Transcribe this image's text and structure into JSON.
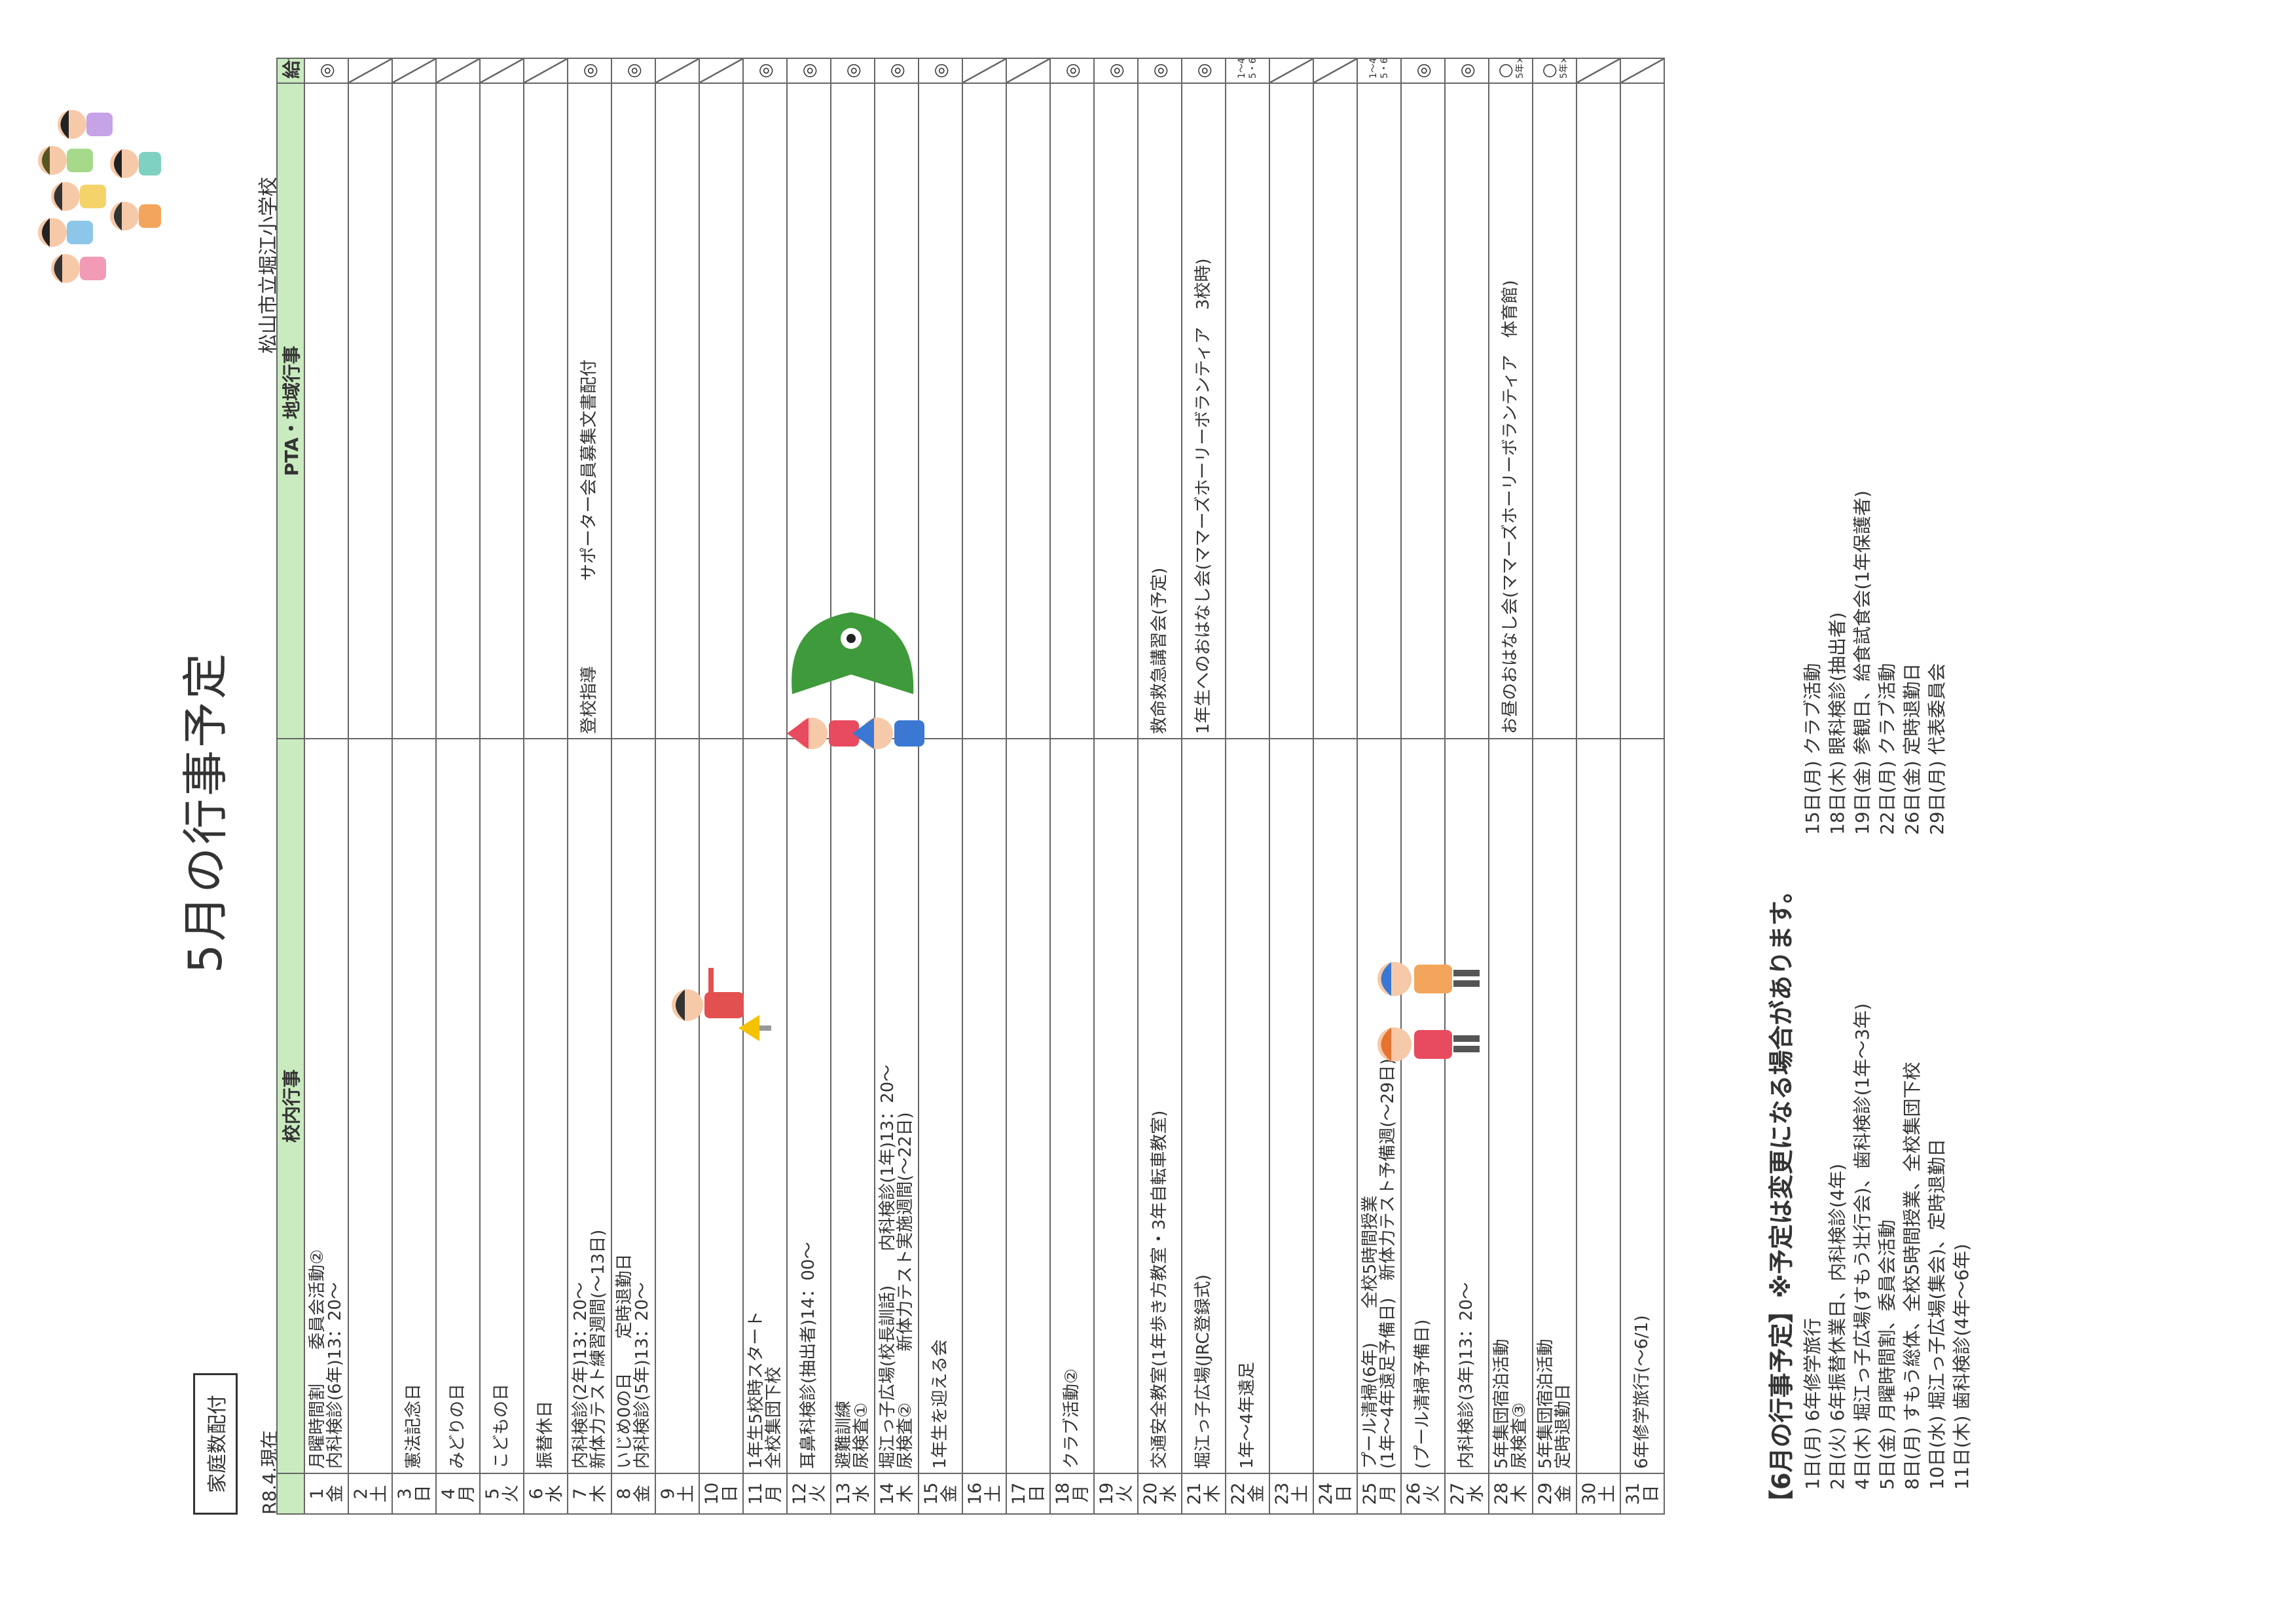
{
  "header": {
    "title": "5月の行事予定",
    "label": "家庭数配付",
    "as_of": "R8.4.現在",
    "school": "松山市立堀江小学校"
  },
  "columns": {
    "school": "校内行事",
    "pta": "PTA・地域行事",
    "lunch": "給食"
  },
  "days": [
    {
      "d": "1",
      "w": "金",
      "ev": "月曜時間割　　委員会活動②\n内科検診(6年)13：20～",
      "pta": "",
      "ml": "◎",
      "s": ""
    },
    {
      "d": "2",
      "w": "土",
      "ev": "",
      "pta": "",
      "ml": "",
      "s": "x"
    },
    {
      "d": "3",
      "w": "日",
      "ev": "憲法記念日",
      "pta": "",
      "ml": "",
      "s": "x"
    },
    {
      "d": "4",
      "w": "月",
      "ev": "みどりの日",
      "pta": "",
      "ml": "",
      "s": "x"
    },
    {
      "d": "5",
      "w": "火",
      "ev": "こどもの日",
      "pta": "",
      "ml": "",
      "s": "x"
    },
    {
      "d": "6",
      "w": "水",
      "ev": "振替休日",
      "pta": "",
      "ml": "",
      "s": "x"
    },
    {
      "d": "7",
      "w": "木",
      "ev": "内科検診(2年)13：20～\n新体力テスト練習週間(～13日)",
      "pta": "登校指導　　　　　サポーター会員募集文書配付",
      "ml": "◎",
      "s": ""
    },
    {
      "d": "8",
      "w": "金",
      "ev": "いじめ0の日　　定時退勤日\n内科検診(5年)13：20～",
      "pta": "",
      "ml": "◎",
      "s": ""
    },
    {
      "d": "9",
      "w": "土",
      "ev": "",
      "pta": "",
      "ml": "",
      "s": "x"
    },
    {
      "d": "10",
      "w": "日",
      "ev": "",
      "pta": "",
      "ml": "",
      "s": "x"
    },
    {
      "d": "11",
      "w": "月",
      "ev": "1年生5校時スタート\n全校集団下校",
      "pta": "",
      "ml": "◎",
      "s": ""
    },
    {
      "d": "12",
      "w": "火",
      "ev": "耳鼻科検診(抽出者)14：00～",
      "pta": "",
      "ml": "◎",
      "s": ""
    },
    {
      "d": "13",
      "w": "水",
      "ev": "避難訓練\n尿検査①",
      "pta": "",
      "ml": "◎",
      "s": ""
    },
    {
      "d": "14",
      "w": "木",
      "ev": "堀江っ子広場(校長訓話)　　内科検診(1年)13：20～\n尿検査②　　　新体力テスト実施週間(～22日)",
      "pta": "",
      "ml": "◎",
      "s": ""
    },
    {
      "d": "15",
      "w": "金",
      "ev": "1年生を迎える会",
      "pta": "",
      "ml": "◎",
      "s": ""
    },
    {
      "d": "16",
      "w": "土",
      "ev": "",
      "pta": "",
      "ml": "",
      "s": "x"
    },
    {
      "d": "17",
      "w": "日",
      "ev": "",
      "pta": "",
      "ml": "",
      "s": "x"
    },
    {
      "d": "18",
      "w": "月",
      "ev": "クラブ活動②",
      "pta": "",
      "ml": "◎",
      "s": ""
    },
    {
      "d": "19",
      "w": "火",
      "ev": "",
      "pta": "",
      "ml": "◎",
      "s": ""
    },
    {
      "d": "20",
      "w": "水",
      "ev": "交通安全教室(1年歩き方教室・3年自転車教室)",
      "pta": "救命救急講習会(予定)",
      "ml": "◎",
      "s": ""
    },
    {
      "d": "21",
      "w": "木",
      "ev": "堀江っ子広場(JRC登録式)",
      "pta": "1年生へのおはなし会(ママーズホーリーボランティア　3校時)",
      "ml": "◎",
      "s": ""
    },
    {
      "d": "22",
      "w": "金",
      "ev": "1年～4年遠足",
      "pta": "",
      "ml": "",
      "s": "1～4年×\n5・6年○"
    },
    {
      "d": "23",
      "w": "土",
      "ev": "",
      "pta": "",
      "ml": "",
      "s": "x"
    },
    {
      "d": "24",
      "w": "日",
      "ev": "",
      "pta": "",
      "ml": "",
      "s": "x"
    },
    {
      "d": "25",
      "w": "月",
      "ev": "プール清掃(6年)　　全校5時間授業\n(1年～4年遠足予備日)　新体力テスト予備週(～29日)",
      "pta": "",
      "ml": "",
      "s": "1～4年×\n5・6年○"
    },
    {
      "d": "26",
      "w": "火",
      "ev": "(プール清掃予備日)",
      "pta": "",
      "ml": "◎",
      "s": ""
    },
    {
      "d": "27",
      "w": "水",
      "ev": "内科検診(3年)13：20～",
      "pta": "",
      "ml": "◎",
      "s": ""
    },
    {
      "d": "28",
      "w": "木",
      "ev": "5年集団宿泊活動\n尿検査③",
      "pta": "お昼のおはなし会(ママーズホーリーボランティア　体育館)",
      "ml": "○",
      "s": "5年×"
    },
    {
      "d": "29",
      "w": "金",
      "ev": "5年集団宿泊活動\n定時退勤日",
      "pta": "",
      "ml": "○",
      "s": "5年×"
    },
    {
      "d": "30",
      "w": "土",
      "ev": "",
      "pta": "",
      "ml": "",
      "s": "x"
    },
    {
      "d": "31",
      "w": "日",
      "ev": "6年修学旅行(～6/1)",
      "pta": "",
      "ml": "",
      "s": "x"
    }
  ],
  "june": {
    "title": "【6月の行事予定】※予定は変更になる場合があります。",
    "left": "1日(月) 6年修学旅行\n2日(火) 6年振替休業日、内科検診(4年)\n4日(木) 堀江っ子広場(すもう壮行会)、歯科検診(1年～3年)\n5日(金) 月曜時間割、委員会活動\n8日(月) すもう総体、全校5時間授業、全校集団下校\n10日(水) 堀江っ子広場(集会)、定時退勤日\n11日(木) 歯科検診(4年～6年)",
    "right": "15日(月) クラブ活動\n18日(木) 眼科検診(抽出者)\n19日(金) 参観日、給食試食会(1年保護者)\n22日(月) クラブ活動\n26日(金) 定時退勤日\n29日(月) 代表委員会"
  },
  "illustrations": {
    "kids_group": "children-group-illustration",
    "koinobori": "koinobori-children-illustration",
    "crossing": "crossing-guard-illustration",
    "kids_pair": "children-pair-illustration"
  }
}
